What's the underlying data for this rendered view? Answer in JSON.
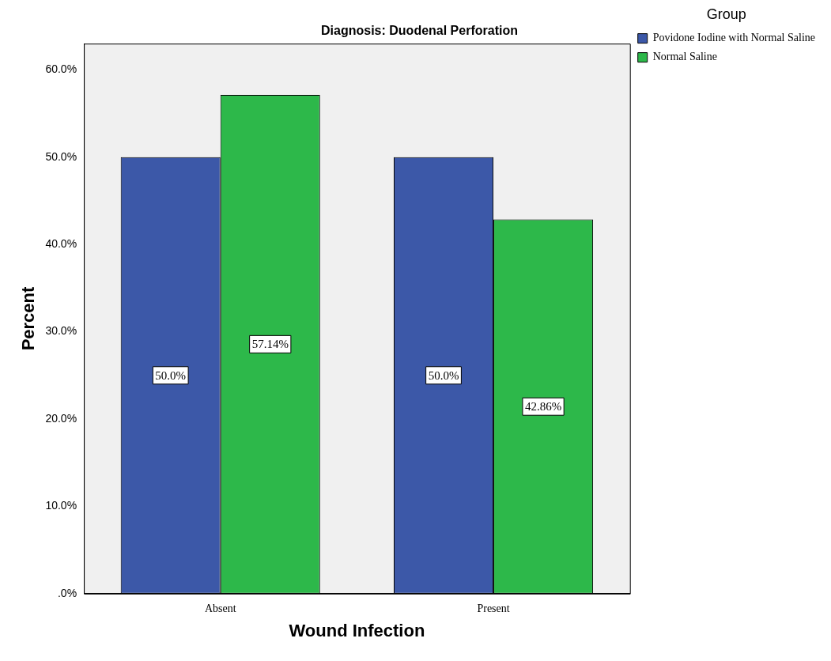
{
  "chart_data": {
    "type": "bar",
    "title": "Diagnosis: Duodenal Perforation",
    "xlabel": "Wound Infection",
    "ylabel": "Percent",
    "legend_title": "Group",
    "categories": [
      "Absent",
      "Present"
    ],
    "series": [
      {
        "name": "Povidone Iodine with Normal Saline",
        "color": "#3c58a8",
        "values": [
          50,
          50
        ],
        "value_labels": [
          "50.0%",
          "50.0%"
        ]
      },
      {
        "name": "Normal Saline",
        "color": "#2db84a",
        "values": [
          57.14,
          42.86
        ],
        "value_labels": [
          "57.14%",
          "42.86%"
        ]
      }
    ],
    "ylim": [
      0,
      63
    ],
    "yticks": [
      {
        "value": 0,
        "label": ".0%"
      },
      {
        "value": 10,
        "label": "10.0%"
      },
      {
        "value": 20,
        "label": "20.0%"
      },
      {
        "value": 30,
        "label": "30.0%"
      },
      {
        "value": 40,
        "label": "40.0%"
      },
      {
        "value": 50,
        "label": "50.0%"
      },
      {
        "value": 60,
        "label": "60.0%"
      }
    ],
    "grid": false,
    "legend": "top right"
  }
}
